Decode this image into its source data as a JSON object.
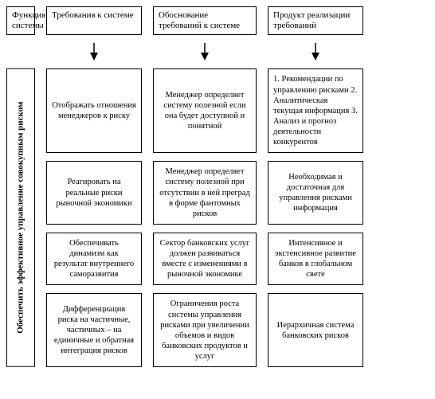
{
  "type": "flowchart",
  "background_color": "#ffffff",
  "border_color": "#000000",
  "font_family": "Times New Roman",
  "header_fontsize": 11,
  "cell_fontsize": 10.5,
  "columns": [
    {
      "title": "Функция системы"
    },
    {
      "title": "Требования к системе"
    },
    {
      "title": "Обоснование требований к системе"
    },
    {
      "title": "Продукт реализации требований"
    }
  ],
  "vertical_label": "Обеспечить эффективное управление совокупным риском",
  "rows": [
    {
      "req": "Отображать отношения менеджеров к риску",
      "just": "Менеджер определяет систему полезной если она будет доступной и понятной",
      "prod": "1. Рекомендации по управлению рисками 2. Аналитическая текущая информация 3. Анализ и прогноз деятельности конкурентов",
      "prod_align": "left"
    },
    {
      "req": "Реагировать на реальные риски рыночной экономики",
      "just": "Менеджер определяет систему полезной при отсутствии в ней преград в форме фантомных рисков",
      "prod": "Необходимая и достаточная для управления рисками информация"
    },
    {
      "req": "Обеспечивать динамизм как результат внутреннего саморазвития",
      "just": "Сектор банковских услуг должен развиваться вместе с изменениями в рыночной экономике",
      "prod": "Интенсивное и экстенсивное развитие банков в глобальном свете"
    },
    {
      "req": "Дифференциация риска на частичные, частичных – на единичные и обратная интеграция рисков",
      "just": "Ограничения роста системы управления рисками при увеличении объемов и видов банковских продуктов и услуг",
      "prod": "Иерархичная система банковских рисков"
    }
  ]
}
